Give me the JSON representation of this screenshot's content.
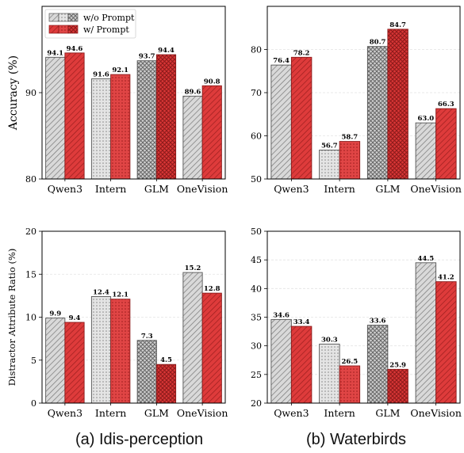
{
  "captions": {
    "left": "(a) Idis-perception",
    "right": "(b) Waterbirds"
  },
  "series_styles": {
    "wo": {
      "name": "w/o Prompt",
      "fill": "#d9d9d9",
      "stroke": "#555555"
    },
    "w": {
      "name": "w/ Prompt",
      "fill": "#de3b3b",
      "stroke": "#8b1a1a"
    }
  },
  "chart_data": [
    {
      "type": "bar",
      "panel": "top-left",
      "ylabel": "Accuracy (%)",
      "categories": [
        "Qwen3",
        "Intern",
        "GLM",
        "OneVision"
      ],
      "ylim": [
        80,
        100
      ],
      "yticks": [
        80,
        90
      ],
      "grid": true,
      "legend": "top-left",
      "series": [
        {
          "name": "w/o Prompt",
          "values": [
            94.1,
            91.6,
            93.7,
            89.6
          ],
          "labels": [
            "94.1",
            "91.6",
            "93.7",
            "89.6"
          ]
        },
        {
          "name": "w/ Prompt",
          "values": [
            94.6,
            92.1,
            94.4,
            90.8
          ],
          "labels": [
            "94.6",
            "92.1",
            "94.4",
            "90.8"
          ]
        }
      ]
    },
    {
      "type": "bar",
      "panel": "top-right",
      "ylabel": "",
      "categories": [
        "Qwen3",
        "Intern",
        "GLM",
        "OneVision"
      ],
      "ylim": [
        50,
        90
      ],
      "yticks": [
        50,
        60,
        70,
        80
      ],
      "grid": true,
      "series": [
        {
          "name": "w/o Prompt",
          "values": [
            76.4,
            56.7,
            80.7,
            63.0
          ],
          "labels": [
            "76.4",
            "56.7",
            "80.7",
            "63.0"
          ]
        },
        {
          "name": "w/ Prompt",
          "values": [
            78.2,
            58.7,
            84.7,
            66.3
          ],
          "labels": [
            "78.2",
            "58.7",
            "84.7",
            "66.3"
          ]
        }
      ]
    },
    {
      "type": "bar",
      "panel": "bottom-left",
      "ylabel": "Distractor Attribute Ratio (%)",
      "categories": [
        "Qwen3",
        "Intern",
        "GLM",
        "OneVision"
      ],
      "ylim": [
        0,
        20
      ],
      "yticks": [
        0,
        5,
        10,
        15,
        20
      ],
      "grid": true,
      "series": [
        {
          "name": "w/o Prompt",
          "values": [
            9.9,
            12.4,
            7.3,
            15.2
          ],
          "labels": [
            "9.9",
            "12.4",
            "7.3",
            "15.2"
          ]
        },
        {
          "name": "w/ Prompt",
          "values": [
            9.4,
            12.1,
            4.5,
            12.8
          ],
          "labels": [
            "9.4",
            "12.1",
            "4.5",
            "12.8"
          ]
        }
      ]
    },
    {
      "type": "bar",
      "panel": "bottom-right",
      "ylabel": "",
      "categories": [
        "Qwen3",
        "Intern",
        "GLM",
        "OneVision"
      ],
      "ylim": [
        20,
        50
      ],
      "yticks": [
        20,
        25,
        30,
        35,
        40,
        45,
        50
      ],
      "grid": true,
      "series": [
        {
          "name": "w/o Prompt",
          "values": [
            34.6,
            30.3,
            33.6,
            44.5
          ],
          "labels": [
            "34.6",
            "30.3",
            "33.6",
            "44.5"
          ]
        },
        {
          "name": "w/ Prompt",
          "values": [
            33.4,
            26.5,
            25.9,
            41.2
          ],
          "labels": [
            "33.4",
            "26.5",
            "25.9",
            "41.2"
          ]
        }
      ]
    }
  ]
}
